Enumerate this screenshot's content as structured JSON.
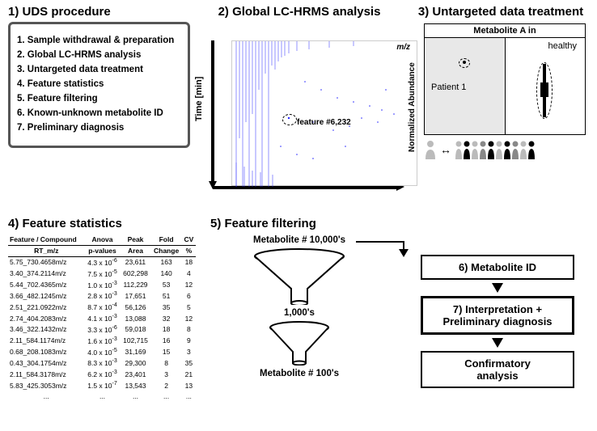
{
  "panel1": {
    "title": "1) UDS procedure",
    "items": [
      "1. Sample withdrawal & preparation",
      "2. Global LC-HRMS analysis",
      "3. Untargeted data treatment",
      "4. Feature statistics",
      "5. Feature filtering",
      "6. Known-unknown metabolite ID",
      "7. Preliminary diagnosis"
    ]
  },
  "panel2": {
    "title": "2) Global LC-HRMS analysis",
    "ylabel": "Time [min]",
    "xlabel": "m/z",
    "feature_label": "feature #6,232",
    "plot_color": "#2a2aff"
  },
  "panel3": {
    "title": "3) Untargeted data treatment",
    "header": "Metabolite  A  in",
    "left_label": "Patient 1",
    "right_label": "healthy",
    "ylabel": "Normalized Abundance"
  },
  "panel4": {
    "title": "4) Feature statistics",
    "col1a": "Feature / Compound",
    "col1b": "RT_m/z",
    "col2a": "Anova",
    "col2b": "p-values",
    "col3a": "Peak",
    "col3b": "Area",
    "col4a": "Fold",
    "col4b": "Change",
    "col5a": "CV",
    "col5b": "%",
    "rows": [
      {
        "rt": "5.75_730.4658m/z",
        "p": "4.3 x 10",
        "e": "-6",
        "area": "23,611",
        "fc": "163",
        "cv": "18"
      },
      {
        "rt": "3.40_374.2114m/z",
        "p": "7.5 x 10",
        "e": "-5",
        "area": "602,298",
        "fc": "140",
        "cv": "4"
      },
      {
        "rt": "5.44_702.4365m/z",
        "p": "1.0 x 10",
        "e": "-3",
        "area": "112,229",
        "fc": "53",
        "cv": "12"
      },
      {
        "rt": "3.66_482.1245m/z",
        "p": "2.8 x 10",
        "e": "-3",
        "area": "17,651",
        "fc": "51",
        "cv": "6"
      },
      {
        "rt": "2.51_221.0922m/z",
        "p": "8.7 x 10",
        "e": "-4",
        "area": "56,126",
        "fc": "35",
        "cv": "5"
      },
      {
        "rt": "2.74_404.2083m/z",
        "p": "4.1 x 10",
        "e": "-3",
        "area": "13,088",
        "fc": "32",
        "cv": "12"
      },
      {
        "rt": "3.46_322.1432m/z",
        "p": "3.3 x 10",
        "e": "-6",
        "area": "59,018",
        "fc": "18",
        "cv": "8"
      },
      {
        "rt": "2.11_584.1174m/z",
        "p": "1.6 x 10",
        "e": "-3",
        "area": "102,715",
        "fc": "16",
        "cv": "9"
      },
      {
        "rt": "0.68_208.1083m/z",
        "p": "4.0 x 10",
        "e": "-5",
        "area": "31,169",
        "fc": "15",
        "cv": "3"
      },
      {
        "rt": "0.43_304.1754m/z",
        "p": "8.3 x 10",
        "e": "-3",
        "area": "29,300",
        "fc": "8",
        "cv": "35"
      },
      {
        "rt": "2.11_584.3178m/z",
        "p": "6.2 x 10",
        "e": "-3",
        "area": "23,401",
        "fc": "3",
        "cv": "21"
      },
      {
        "rt": "5.83_425.3053m/z",
        "p": "1.5 x 10",
        "e": "-7",
        "area": "13,543",
        "fc": "2",
        "cv": "13"
      }
    ],
    "ellipsis": "..."
  },
  "panel5": {
    "title": "5) Feature filtering",
    "top": "Metabolite # 10,000's",
    "mid": "1,000's",
    "bot": "Metabolite # 100's",
    "funnel_fill": "#ffffff",
    "funnel_stroke": "#000000"
  },
  "panel6": {
    "label": "6) Metabolite ID"
  },
  "panel7": {
    "label1": "7) Interpretation  +",
    "label2": "Preliminary diagnosis"
  },
  "panelC": {
    "label1": "Confirmatory",
    "label2": "analysis"
  },
  "people_colors": [
    "#bbbbbb",
    "#000000",
    "#bbbbbb",
    "#888888",
    "#000000",
    "#bbbbbb",
    "#000000",
    "#888888",
    "#bbbbbb",
    "#000000"
  ]
}
